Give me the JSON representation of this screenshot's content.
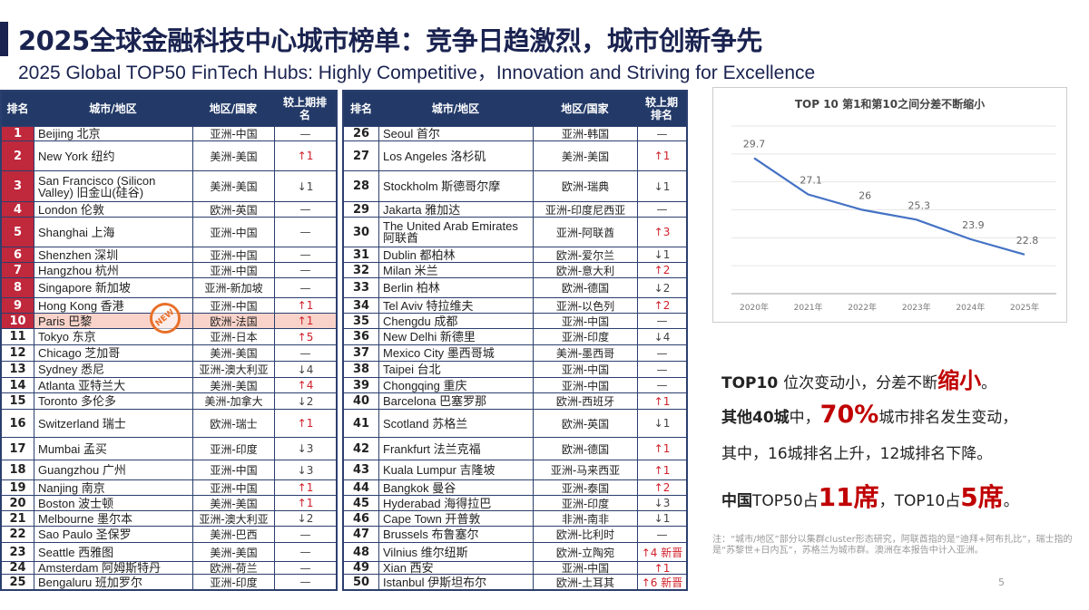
{
  "header": {
    "title": "2025全球金融科技中心城市榜单：竞争日趋激烈，城市创新争先",
    "subtitle": "2025 Global TOP50 FinTech Hubs: Highly Competitive，Innovation and Striving for Excellence"
  },
  "table_headers": {
    "rank": "排名",
    "city": "城市/地区",
    "region": "地区/国家",
    "change": "较上期排名"
  },
  "new_badge": "NEW",
  "colors": {
    "navy": "#233a68",
    "rank_red": "#c0283c",
    "up": "#d0202a",
    "accent_text": "#c00000"
  },
  "left_table": {
    "rows": [
      [
        "1",
        "Beijing  北京",
        "亚洲-中国",
        "—"
      ],
      [
        "2",
        " New York  纽约",
        "美洲-美国",
        "↑1"
      ],
      [
        "3",
        "San Francisco (Silicon Valley)  旧金山(硅谷)",
        "美洲-美国",
        "↓1"
      ],
      [
        "4",
        "London  伦敦",
        "欧洲-英国",
        "—"
      ],
      [
        "5",
        "Shanghai  上海",
        "亚洲-中国",
        "—"
      ],
      [
        "6",
        "Shenzhen  深圳",
        "亚洲-中国",
        "—"
      ],
      [
        "7",
        "Hangzhou  杭州",
        "亚洲-中国",
        "—"
      ],
      [
        "8",
        "Singapore  新加坡",
        "亚洲-新加坡",
        "—"
      ],
      [
        "9",
        "Hong Kong  香港",
        "亚洲-中国",
        "↑1"
      ],
      [
        "10",
        "Paris  巴黎",
        "欧洲-法国",
        "↑1"
      ],
      [
        "11",
        "Tokyo  东京",
        "亚洲-日本",
        "↑5"
      ],
      [
        "12",
        "Chicago  芝加哥",
        "美洲-美国",
        "—"
      ],
      [
        "13",
        "Sydney  悉尼",
        "亚洲-澳大利亚",
        "↓4"
      ],
      [
        "14",
        "Atlanta  亚特兰大",
        "美洲-美国",
        "↑4"
      ],
      [
        "15",
        "Toronto  多伦多",
        "美洲-加拿大",
        "↓2"
      ],
      [
        "16",
        "Switzerland 瑞士",
        "欧洲-瑞士",
        "↑1"
      ],
      [
        "17",
        "Mumbai  孟买",
        "亚洲-印度",
        "↓3"
      ],
      [
        "18",
        "Guangzhou  广州",
        "亚洲-中国",
        "↓3"
      ],
      [
        "19",
        "Nanjing  南京",
        "亚洲-中国",
        "↑1"
      ],
      [
        "20",
        "Boston  波士顿",
        "美洲-美国",
        "↑1"
      ],
      [
        "21",
        "Melbourne  墨尔本",
        "亚洲-澳大利亚",
        "↓2"
      ],
      [
        "22",
        "Sao Paulo  圣保罗",
        "美洲-巴西",
        "—"
      ],
      [
        "23",
        "Seattle  西雅图",
        "美洲-美国",
        "—"
      ],
      [
        "24",
        "Amsterdam  阿姆斯特丹",
        "欧洲-荷兰",
        "—"
      ],
      [
        "25",
        "Bengaluru  班加罗尔",
        "亚洲-印度",
        "—"
      ]
    ]
  },
  "right_table": {
    "rows": [
      [
        "26",
        "Seoul  首尔",
        "亚洲-韩国",
        "—"
      ],
      [
        "27",
        "Los Angeles  洛杉矶",
        "美洲-美国",
        "↑1"
      ],
      [
        "28",
        "Stockholm  斯德哥尔摩",
        "欧洲-瑞典",
        "↓1"
      ],
      [
        "29",
        "Jakarta  雅加达",
        "亚洲-印度尼西亚",
        "—"
      ],
      [
        "30",
        "The United Arab Emirates 阿联酋",
        "亚洲-阿联酋",
        "↑3"
      ],
      [
        "31",
        "Dublin  都柏林",
        "欧洲-爱尔兰",
        "↓1"
      ],
      [
        "32",
        "Milan  米兰",
        "欧洲-意大利",
        "↑2"
      ],
      [
        "33",
        "Berlin  柏林",
        "欧洲-德国",
        "↓2"
      ],
      [
        "34",
        "Tel Aviv  特拉维夫",
        "亚洲-以色列",
        "↑2"
      ],
      [
        "35",
        "Chengdu  成都",
        "亚洲-中国",
        "—"
      ],
      [
        "36",
        "New Delhi  新德里",
        "亚洲-印度",
        "↓4"
      ],
      [
        "37",
        "Mexico City  墨西哥城",
        "美洲-墨西哥",
        "—"
      ],
      [
        "38",
        "Taipei  台北",
        "亚洲-中国",
        "—"
      ],
      [
        "39",
        "Chongqing  重庆",
        "亚洲-中国",
        "—"
      ],
      [
        "40",
        "Barcelona  巴塞罗那",
        "欧洲-西班牙",
        "↑1"
      ],
      [
        "41",
        "Scotland  苏格兰",
        "欧洲-英国",
        "↓1"
      ],
      [
        "42",
        "Frankfurt  法兰克福",
        "欧洲-德国",
        "↑1"
      ],
      [
        "43",
        "Kuala Lumpur  吉隆坡",
        "亚洲-马来西亚",
        "↑1"
      ],
      [
        "44",
        "Bangkok  曼谷",
        "亚洲-泰国",
        "↑2"
      ],
      [
        "45",
        "Hyderabad  海得拉巴",
        "亚洲-印度",
        "↓3"
      ],
      [
        "46",
        "Cape Town  开普敦",
        "非洲-南非",
        "↓1"
      ],
      [
        "47",
        "Brussels  布鲁塞尔",
        "欧洲-比利时",
        "—"
      ],
      [
        "48",
        "Vilnius  维尔纽斯",
        "欧洲-立陶宛",
        "↑4 新晋"
      ],
      [
        "49",
        "Xian 西安",
        "亚洲-中国",
        "↑1"
      ],
      [
        "50",
        "Istanbul  伊斯坦布尔",
        "欧洲-土耳其",
        "↑6 新晋"
      ]
    ]
  },
  "chart_data": {
    "type": "line",
    "title": "TOP 10 第1和第10之间分差不断缩小",
    "categories": [
      "2020年",
      "2021年",
      "2022年",
      "2023年",
      "2024年",
      "2025年"
    ],
    "values": [
      29.7,
      27.1,
      26,
      25.3,
      23.9,
      22.8
    ],
    "ylim": [
      20,
      32
    ],
    "grid": true,
    "line_color": "#4472c4"
  },
  "notes": {
    "line1": {
      "a": "TOP10 ",
      "b": "位次变动小，分差不断",
      "c": "缩小",
      "d": "。"
    },
    "line2": {
      "a": "其他40城",
      "b": "中，",
      "c": "70%",
      "d": "城市排名发生变动，"
    },
    "line3": "其中，16城排名上升，12城排名下降。",
    "line4": {
      "a": "中国",
      "b": "TOP50占",
      "c": "11席",
      "d": "，TOP10占",
      "e": "5席",
      "f": "。"
    }
  },
  "footnote": "注：“城市/地区”部分以集群cluster形态研究，阿联酋指的是“迪拜+阿布扎比”，瑞士指的是“苏黎世+日内瓦”，苏格兰为城市群。澳洲在本报告中计入亚洲。",
  "page_number": "5"
}
